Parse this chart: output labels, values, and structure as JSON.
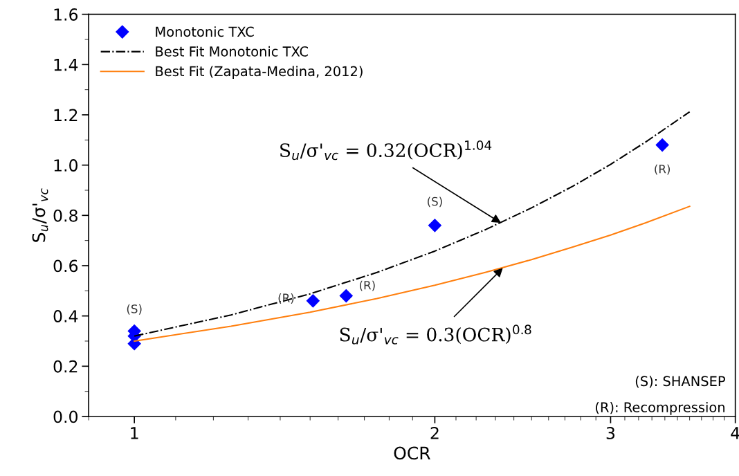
{
  "chart_data": {
    "type": "scatter",
    "xlabel": "OCR",
    "ylabel": "S$_{u}$/σ'$_{vc}$",
    "log": "x",
    "xlim": [
      0.9,
      4
    ],
    "xticks": [
      1,
      2,
      3,
      4
    ],
    "ylim": [
      0,
      1.6
    ],
    "yticks": [
      {
        "value": 0,
        "label": "0.0"
      },
      0.2,
      0.4,
      0.6,
      0.8,
      {
        "value": 1,
        "label": "1.0"
      },
      1.2,
      1.4,
      1.6
    ],
    "grid": false,
    "legend": "top left",
    "marker": "diamond",
    "series": [
      {
        "name": "Monotonic TXC",
        "color": "#0000ff",
        "x": [
          1,
          1,
          1,
          1.51,
          1.63,
          2.0,
          3.38
        ],
        "values": [
          0.34,
          0.32,
          0.29,
          0.46,
          0.48,
          0.76,
          1.08
        ]
      },
      {
        "name": "Best Fit Monotonic TXC",
        "type": "line",
        "color": "#000000",
        "line_style": "dashdot",
        "marker": "none",
        "x": [
          1,
          1.25,
          1.5,
          1.75,
          2,
          2.25,
          2.5,
          2.75,
          3,
          3.25,
          3.6
        ],
        "values": [
          0.32,
          0.404,
          0.488,
          0.573,
          0.658,
          0.744,
          0.83,
          0.916,
          1.003,
          1.091,
          1.212
        ]
      },
      {
        "name": "Best Fit (Zapata-Medina, 2012)",
        "type": "line",
        "color": "#ff7f0e",
        "line_style": "solid",
        "marker": "none",
        "x": [
          1,
          1.25,
          1.5,
          1.75,
          2,
          2.25,
          2.5,
          2.75,
          3,
          3.25,
          3.6
        ],
        "values": [
          0.3,
          0.359,
          0.415,
          0.469,
          0.522,
          0.574,
          0.624,
          0.674,
          0.722,
          0.77,
          0.836
        ]
      }
    ],
    "annotations": [
      {
        "text": "(S)",
        "x": 1,
        "y": 0.34
      },
      {
        "text": "(R)",
        "x": 1.51,
        "y": 0.46
      },
      {
        "text": "(R)",
        "x": 1.63,
        "y": 0.48
      },
      {
        "text": "(S)",
        "x": 2.0,
        "y": 0.76
      },
      {
        "text": "(R)",
        "x": 3.38,
        "y": 1.08
      },
      {
        "text": "S$_{u}$/σ'$_{vc}$ = 0.32(OCR)$^{1.04}$",
        "x": 2.33,
        "y": 0.77
      },
      {
        "text": "S$_{u}$/σ'$_{vc}$ = 0.3(OCR)$^{0.8}$",
        "x": 2.34,
        "y": 0.591
      },
      "(S): SHANSEP",
      "(R): Recompression"
    ]
  }
}
